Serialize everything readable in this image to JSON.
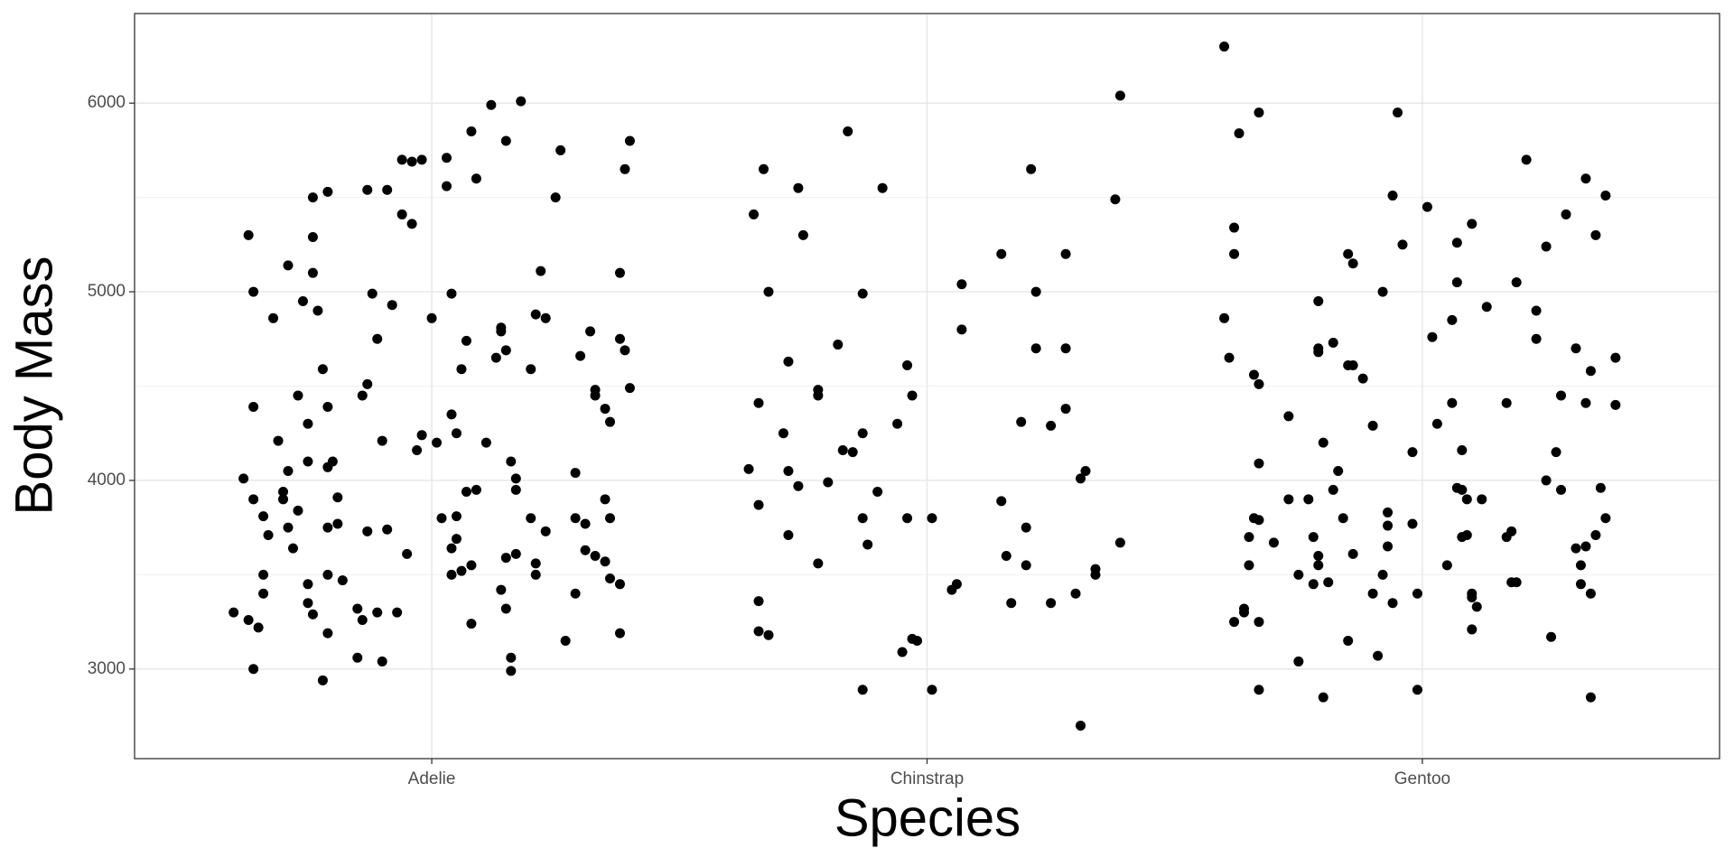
{
  "chart_data": {
    "type": "scatter",
    "x_label": "Species",
    "y_label": "Body Mass",
    "xlim": [
      0.4,
      3.6
    ],
    "ylim": [
      2525,
      6475
    ],
    "xticks": [
      {
        "value": 1,
        "label": "Adelie"
      },
      {
        "value": 2,
        "label": "Chinstrap"
      },
      {
        "value": 3,
        "label": "Gentoo"
      }
    ],
    "yticks": [
      3000,
      4000,
      5000,
      6000
    ],
    "y_minor_grid": [
      3500,
      4500,
      5500
    ],
    "grid": true,
    "series": [
      {
        "color": "#000000",
        "x": [
          0.6,
          0.63,
          0.64,
          0.64,
          0.62,
          0.64,
          0.63,
          0.65,
          0.64,
          0.66,
          0.66,
          0.67,
          0.66,
          0.68,
          0.69,
          0.71,
          0.7,
          0.7,
          0.71,
          0.71,
          0.72,
          0.73,
          0.73,
          0.74,
          0.76,
          0.75,
          0.75,
          0.75,
          0.75,
          0.76,
          0.76,
          0.76,
          0.77,
          0.78,
          0.78,
          0.79,
          0.79,
          0.79,
          0.79,
          0.79,
          0.8,
          0.81,
          0.81,
          0.79,
          0.82,
          0.85,
          0.85,
          0.86,
          0.87,
          0.87,
          0.87,
          0.86,
          0.88,
          0.89,
          0.89,
          0.9,
          0.9,
          0.91,
          0.91,
          0.92,
          0.93,
          0.94,
          0.95,
          0.94,
          0.96,
          0.97,
          0.96,
          0.98,
          0.98,
          1.0,
          1.01,
          1.03,
          1.03,
          1.02,
          1.04,
          1.04,
          1.04,
          1.04,
          1.05,
          1.05,
          1.06,
          1.06,
          1.05,
          1.07,
          1.07,
          1.08,
          1.08,
          1.08,
          1.09,
          1.09,
          1.11,
          1.12,
          1.13,
          1.14,
          1.14,
          1.15,
          1.14,
          1.15,
          1.15,
          1.15,
          1.16,
          1.16,
          1.16,
          1.17,
          1.17,
          1.17,
          1.18,
          1.2,
          1.2,
          1.21,
          1.21,
          1.21,
          1.22,
          1.23,
          1.23,
          1.25,
          1.26,
          1.27,
          1.29,
          1.29,
          1.29,
          1.3,
          1.31,
          1.31,
          1.32,
          1.33,
          1.33,
          1.33,
          1.35,
          1.35,
          1.35,
          1.36,
          1.36,
          1.36,
          1.38,
          1.38,
          1.38,
          1.38,
          1.39,
          1.39,
          1.4,
          1.4,
          1.64,
          1.65,
          1.66,
          1.66,
          1.66,
          1.66,
          1.67,
          1.68,
          1.68,
          1.71,
          1.72,
          1.72,
          1.72,
          1.74,
          1.74,
          1.75,
          1.78,
          1.8,
          1.78,
          1.78,
          1.82,
          1.83,
          1.84,
          1.85,
          1.87,
          1.87,
          1.87,
          1.87,
          1.88,
          1.9,
          1.91,
          1.94,
          1.95,
          1.96,
          1.96,
          1.97,
          1.97,
          1.98,
          2.01,
          2.01,
          2.05,
          2.06,
          2.07,
          2.07,
          2.15,
          2.15,
          2.16,
          2.17,
          2.19,
          2.2,
          2.2,
          2.21,
          2.22,
          2.22,
          2.25,
          2.25,
          2.28,
          2.28,
          2.28,
          2.3,
          2.31,
          2.31,
          2.32,
          2.34,
          2.34,
          2.38,
          2.39,
          2.39,
          2.6,
          2.6,
          2.61,
          2.62,
          2.62,
          2.62,
          2.63,
          2.64,
          2.64,
          2.65,
          2.65,
          2.66,
          2.66,
          2.67,
          2.67,
          2.67,
          2.67,
          2.67,
          2.67,
          2.7,
          2.73,
          2.73,
          2.75,
          2.75,
          2.77,
          2.78,
          2.78,
          2.79,
          2.79,
          2.79,
          2.79,
          2.79,
          2.8,
          2.8,
          2.81,
          2.82,
          2.82,
          2.83,
          2.84,
          2.85,
          2.85,
          2.85,
          2.86,
          2.86,
          2.86,
          2.88,
          2.9,
          2.9,
          2.91,
          2.92,
          2.92,
          2.93,
          2.93,
          2.93,
          2.94,
          2.94,
          2.95,
          2.96,
          2.98,
          2.98,
          2.99,
          2.99,
          3.01,
          3.02,
          3.03,
          3.05,
          3.06,
          3.06,
          3.07,
          3.07,
          3.07,
          3.08,
          3.08,
          3.08,
          3.09,
          3.09,
          3.1,
          3.1,
          3.1,
          3.11,
          3.1,
          3.12,
          3.13,
          3.17,
          3.18,
          3.17,
          3.18,
          3.19,
          3.19,
          3.21,
          3.23,
          3.23,
          3.25,
          3.26,
          3.27,
          3.28,
          3.28,
          3.29,
          3.25,
          3.31,
          3.31,
          3.32,
          3.32,
          3.33,
          3.33,
          3.33,
          3.34,
          3.34,
          3.34,
          3.35,
          3.35,
          3.36,
          3.37,
          3.37,
          3.39,
          3.39
        ],
        "values": [
          3300,
          5300,
          5000,
          4390,
          4010,
          3900,
          3260,
          3220,
          3000,
          3500,
          3400,
          3710,
          3810,
          4860,
          4210,
          5140,
          3940,
          3900,
          3750,
          4050,
          3640,
          3840,
          4450,
          4950,
          5290,
          4300,
          4100,
          3350,
          3450,
          3290,
          5500,
          5100,
          4900,
          4590,
          2940,
          5530,
          4390,
          3190,
          4070,
          3750,
          4100,
          3770,
          3910,
          3500,
          3470,
          3060,
          3320,
          4450,
          5540,
          4510,
          3730,
          3260,
          4990,
          4750,
          3300,
          4210,
          3040,
          3740,
          5540,
          4930,
          3300,
          5410,
          3610,
          5700,
          5690,
          4160,
          5360,
          4240,
          5700,
          4860,
          4200,
          5710,
          5560,
          3800,
          4990,
          4350,
          3640,
          3500,
          4250,
          3810,
          4590,
          3520,
          3690,
          3940,
          4740,
          3240,
          5850,
          3550,
          3950,
          5600,
          4200,
          5990,
          4650,
          3420,
          4790,
          3320,
          4810,
          4690,
          5800,
          3590,
          3060,
          2990,
          4100,
          3950,
          4010,
          3610,
          6010,
          4590,
          3800,
          3560,
          3500,
          4880,
          5110,
          4860,
          3730,
          5500,
          5750,
          3150,
          3400,
          4040,
          3800,
          4660,
          3770,
          3630,
          4790,
          3600,
          4450,
          4480,
          3570,
          4380,
          3900,
          3800,
          3480,
          4310,
          5100,
          4750,
          3450,
          3190,
          4690,
          5650,
          4490,
          5800,
          4060,
          5410,
          4410,
          3870,
          3200,
          3360,
          5650,
          5000,
          3180,
          4250,
          4630,
          3710,
          4050,
          3970,
          5550,
          5300,
          3560,
          3990,
          4480,
          4450,
          4720,
          4160,
          5850,
          4150,
          4250,
          2890,
          4990,
          3800,
          3660,
          3940,
          5550,
          4300,
          3090,
          3800,
          4610,
          3160,
          4450,
          3150,
          3800,
          2890,
          3420,
          3450,
          5040,
          4800,
          5200,
          3890,
          3600,
          3350,
          4310,
          3750,
          3550,
          5650,
          5000,
          4700,
          4290,
          3350,
          4700,
          4380,
          5200,
          3400,
          4010,
          2700,
          4050,
          3530,
          3500,
          5490,
          6040,
          3670,
          6300,
          4860,
          4650,
          3250,
          5340,
          5200,
          5840,
          3320,
          3300,
          3700,
          3550,
          3800,
          4560,
          4510,
          3790,
          5950,
          3250,
          2890,
          4090,
          3670,
          4340,
          3900,
          3500,
          3040,
          3900,
          3450,
          3700,
          4950,
          3600,
          3550,
          4680,
          4700,
          2850,
          4200,
          3460,
          4730,
          3950,
          4050,
          3800,
          3150,
          4610,
          5200,
          5150,
          4610,
          3610,
          4540,
          3400,
          4290,
          3070,
          3500,
          5000,
          3650,
          3760,
          3830,
          3350,
          5510,
          5950,
          5250,
          4150,
          3770,
          3400,
          2890,
          5450,
          4760,
          4300,
          3550,
          4850,
          4410,
          5050,
          5260,
          3960,
          3950,
          4160,
          3700,
          3710,
          3900,
          5360,
          3380,
          3400,
          3330,
          3210,
          3900,
          4920,
          3700,
          3730,
          4410,
          3460,
          5050,
          3460,
          5700,
          4750,
          4900,
          4000,
          3170,
          4150,
          3950,
          4450,
          5410,
          5240,
          4700,
          3640,
          3550,
          3450,
          5600,
          3650,
          4410,
          4580,
          3400,
          2850,
          3710,
          5300,
          3960,
          5510,
          3800,
          4400,
          4650
        ]
      }
    ]
  }
}
